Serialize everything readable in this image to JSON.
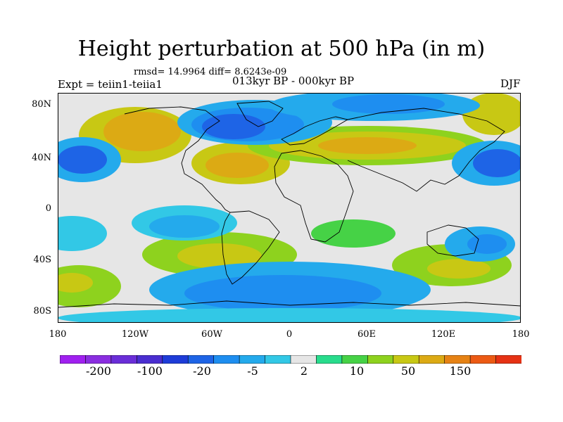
{
  "title": "Height perturbation at 500 hPa (in m)",
  "stats": "rmsd= 14.9964 diff= 8.6243e-09",
  "experiment": "Expt = teiin1-teiia1",
  "period": "013kyr BP - 000kyr BP",
  "season": "DJF",
  "y_ticks": [
    "80N",
    "40N",
    "0",
    "40S",
    "80S"
  ],
  "x_ticks": [
    "180",
    "120W",
    "60W",
    "0",
    "60E",
    "120E",
    "180"
  ],
  "colorbar": {
    "labels": [
      "-200",
      "-100",
      "-20",
      "-5",
      "2",
      "10",
      "50",
      "150"
    ],
    "colors": [
      "#a020f0",
      "#8a2ee0",
      "#6a2ed8",
      "#4a2ed0",
      "#1e3cd8",
      "#1e64e6",
      "#1e8ef0",
      "#24aaec",
      "#32c8e6",
      "#e6e6e6",
      "#28dc8c",
      "#46d246",
      "#8ed21e",
      "#c8c814",
      "#dcaa14",
      "#e68214",
      "#ec5a14",
      "#e63214"
    ]
  },
  "palette": {
    "frame": "#000000",
    "background": "#ffffff",
    "neutral": "#e6e6e6",
    "coast": "#000000"
  }
}
